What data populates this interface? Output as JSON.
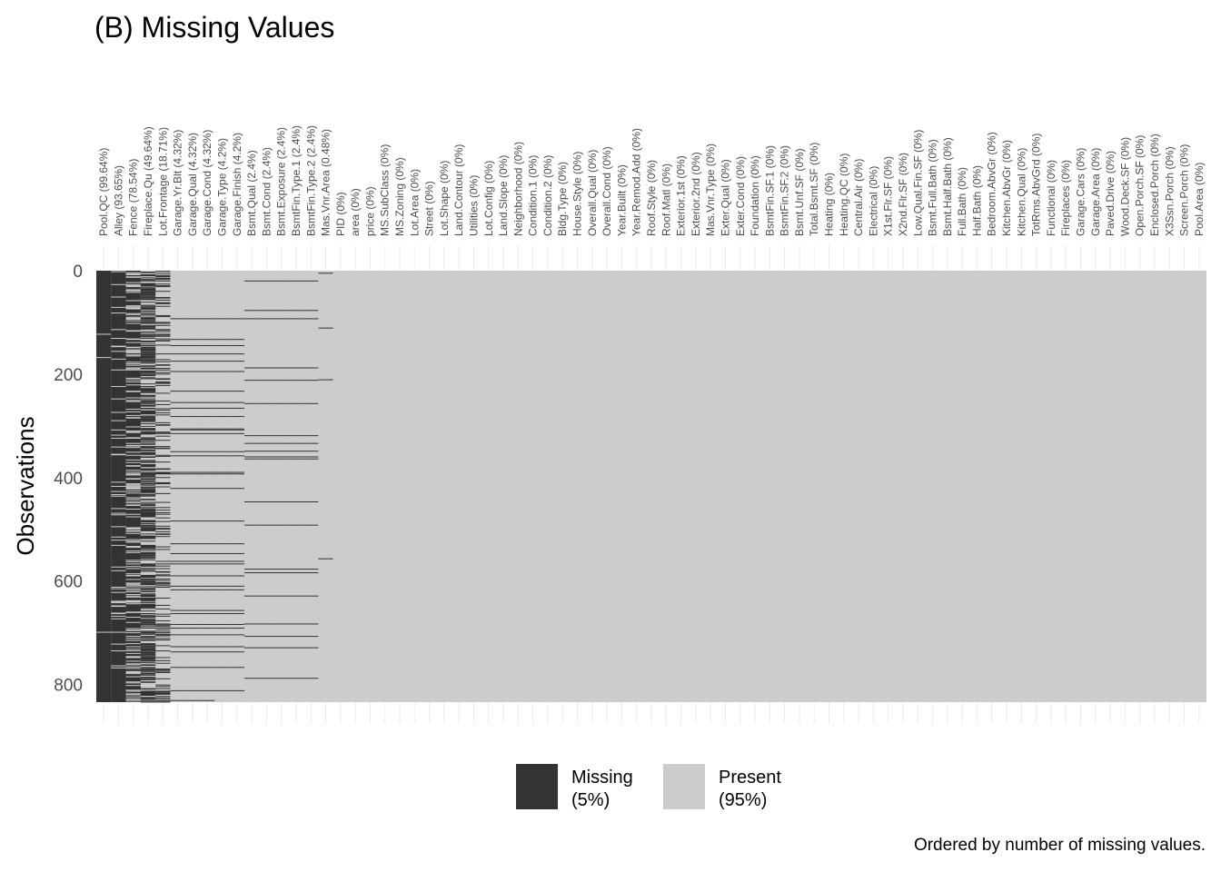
{
  "chart_data": {
    "type": "heatmap",
    "title": "(B) Missing Values",
    "ylabel": "Observations",
    "caption": "Ordered by number of missing values.",
    "n_rows": 834,
    "y_ticks": [
      0,
      200,
      400,
      600,
      800
    ],
    "y_tick_labels": [
      "0",
      "200",
      "400",
      "600",
      "800"
    ],
    "legend": [
      {
        "label": "Missing",
        "pct": "(5%)",
        "color": "#333333"
      },
      {
        "label": "Present",
        "pct": "(95%)",
        "color": "#cccccc"
      }
    ],
    "columns": [
      {
        "name": "Pool.QC",
        "label": "Pool.QC (99.64%)",
        "missing_pct": 99.64
      },
      {
        "name": "Alley",
        "label": "Alley (93.65%)",
        "missing_pct": 93.65
      },
      {
        "name": "Fence",
        "label": "Fence (78.54%)",
        "missing_pct": 78.54
      },
      {
        "name": "Fireplace.Qu",
        "label": "Fireplace.Qu (49.64%)",
        "missing_pct": 49.64
      },
      {
        "name": "Lot.Frontage",
        "label": "Lot.Frontage (18.71%)",
        "missing_pct": 18.71
      },
      {
        "name": "Garage.Yr.Blt",
        "label": "Garage.Yr.Blt (4.32%)",
        "missing_pct": 4.32
      },
      {
        "name": "Garage.Qual",
        "label": "Garage.Qual (4.32%)",
        "missing_pct": 4.32
      },
      {
        "name": "Garage.Cond",
        "label": "Garage.Cond (4.32%)",
        "missing_pct": 4.32
      },
      {
        "name": "Garage.Type",
        "label": "Garage.Type (4.2%)",
        "missing_pct": 4.2
      },
      {
        "name": "Garage.Finish",
        "label": "Garage.Finish (4.2%)",
        "missing_pct": 4.2
      },
      {
        "name": "Bsmt.Qual",
        "label": "Bsmt.Qual (2.4%)",
        "missing_pct": 2.4
      },
      {
        "name": "Bsmt.Cond",
        "label": "Bsmt.Cond (2.4%)",
        "missing_pct": 2.4
      },
      {
        "name": "Bsmt.Exposure",
        "label": "Bsmt.Exposure (2.4%)",
        "missing_pct": 2.4
      },
      {
        "name": "BsmtFin.Type.1",
        "label": "BsmtFin.Type.1 (2.4%)",
        "missing_pct": 2.4
      },
      {
        "name": "BsmtFin.Type.2",
        "label": "BsmtFin.Type.2 (2.4%)",
        "missing_pct": 2.4
      },
      {
        "name": "Mas.Vnr.Area",
        "label": "Mas.Vnr.Area (0.48%)",
        "missing_pct": 0.48
      },
      {
        "name": "PID",
        "label": "PID (0%)",
        "missing_pct": 0
      },
      {
        "name": "area",
        "label": "area (0%)",
        "missing_pct": 0
      },
      {
        "name": "price",
        "label": "price (0%)",
        "missing_pct": 0
      },
      {
        "name": "MS.SubClass",
        "label": "MS.SubClass (0%)",
        "missing_pct": 0
      },
      {
        "name": "MS.Zoning",
        "label": "MS.Zoning (0%)",
        "missing_pct": 0
      },
      {
        "name": "Lot.Area",
        "label": "Lot.Area (0%)",
        "missing_pct": 0
      },
      {
        "name": "Street",
        "label": "Street (0%)",
        "missing_pct": 0
      },
      {
        "name": "Lot.Shape",
        "label": "Lot.Shape (0%)",
        "missing_pct": 0
      },
      {
        "name": "Land.Contour",
        "label": "Land.Contour (0%)",
        "missing_pct": 0
      },
      {
        "name": "Utilities",
        "label": "Utilities (0%)",
        "missing_pct": 0
      },
      {
        "name": "Lot.Config",
        "label": "Lot.Config (0%)",
        "missing_pct": 0
      },
      {
        "name": "Land.Slope",
        "label": "Land.Slope (0%)",
        "missing_pct": 0
      },
      {
        "name": "Neighborhood",
        "label": "Neighborhood (0%)",
        "missing_pct": 0
      },
      {
        "name": "Condition.1",
        "label": "Condition.1 (0%)",
        "missing_pct": 0
      },
      {
        "name": "Condition.2",
        "label": "Condition.2 (0%)",
        "missing_pct": 0
      },
      {
        "name": "Bldg.Type",
        "label": "Bldg.Type (0%)",
        "missing_pct": 0
      },
      {
        "name": "House.Style",
        "label": "House.Style (0%)",
        "missing_pct": 0
      },
      {
        "name": "Overall.Qual",
        "label": "Overall.Qual (0%)",
        "missing_pct": 0
      },
      {
        "name": "Overall.Cond",
        "label": "Overall.Cond (0%)",
        "missing_pct": 0
      },
      {
        "name": "Year.Built",
        "label": "Year.Built (0%)",
        "missing_pct": 0
      },
      {
        "name": "Year.Remod.Add",
        "label": "Year.Remod.Add (0%)",
        "missing_pct": 0
      },
      {
        "name": "Roof.Style",
        "label": "Roof.Style (0%)",
        "missing_pct": 0
      },
      {
        "name": "Roof.Matl",
        "label": "Roof.Matl (0%)",
        "missing_pct": 0
      },
      {
        "name": "Exterior.1st",
        "label": "Exterior.1st (0%)",
        "missing_pct": 0
      },
      {
        "name": "Exterior.2nd",
        "label": "Exterior.2nd (0%)",
        "missing_pct": 0
      },
      {
        "name": "Mas.Vnr.Type",
        "label": "Mas.Vnr.Type (0%)",
        "missing_pct": 0
      },
      {
        "name": "Exter.Qual",
        "label": "Exter.Qual (0%)",
        "missing_pct": 0
      },
      {
        "name": "Exter.Cond",
        "label": "Exter.Cond (0%)",
        "missing_pct": 0
      },
      {
        "name": "Foundation",
        "label": "Foundation (0%)",
        "missing_pct": 0
      },
      {
        "name": "BsmtFin.SF.1",
        "label": "BsmtFin.SF.1 (0%)",
        "missing_pct": 0
      },
      {
        "name": "BsmtFin.SF.2",
        "label": "BsmtFin.SF.2 (0%)",
        "missing_pct": 0
      },
      {
        "name": "Bsmt.Unf.SF",
        "label": "Bsmt.Unf.SF (0%)",
        "missing_pct": 0
      },
      {
        "name": "Total.Bsmt.SF",
        "label": "Total.Bsmt.SF (0%)",
        "missing_pct": 0
      },
      {
        "name": "Heating",
        "label": "Heating (0%)",
        "missing_pct": 0
      },
      {
        "name": "Heating.QC",
        "label": "Heating.QC (0%)",
        "missing_pct": 0
      },
      {
        "name": "Central.Air",
        "label": "Central.Air (0%)",
        "missing_pct": 0
      },
      {
        "name": "Electrical",
        "label": "Electrical (0%)",
        "missing_pct": 0
      },
      {
        "name": "X1st.Flr.SF",
        "label": "X1st.Flr.SF (0%)",
        "missing_pct": 0
      },
      {
        "name": "X2nd.Flr.SF",
        "label": "X2nd.Flr.SF (0%)",
        "missing_pct": 0
      },
      {
        "name": "Low.Qual.Fin.SF",
        "label": "Low.Qual.Fin.SF (0%)",
        "missing_pct": 0
      },
      {
        "name": "Bsmt.Full.Bath",
        "label": "Bsmt.Full.Bath (0%)",
        "missing_pct": 0
      },
      {
        "name": "Bsmt.Half.Bath",
        "label": "Bsmt.Half.Bath (0%)",
        "missing_pct": 0
      },
      {
        "name": "Full.Bath",
        "label": "Full.Bath (0%)",
        "missing_pct": 0
      },
      {
        "name": "Half.Bath",
        "label": "Half.Bath (0%)",
        "missing_pct": 0
      },
      {
        "name": "Bedroom.AbvGr",
        "label": "Bedroom.AbvGr (0%)",
        "missing_pct": 0
      },
      {
        "name": "Kitchen.AbvGr",
        "label": "Kitchen.AbvGr (0%)",
        "missing_pct": 0
      },
      {
        "name": "Kitchen.Qual",
        "label": "Kitchen.Qual (0%)",
        "missing_pct": 0
      },
      {
        "name": "TotRms.AbvGrd",
        "label": "TotRms.AbvGrd (0%)",
        "missing_pct": 0
      },
      {
        "name": "Functional",
        "label": "Functional (0%)",
        "missing_pct": 0
      },
      {
        "name": "Fireplaces",
        "label": "Fireplaces (0%)",
        "missing_pct": 0
      },
      {
        "name": "Garage.Cars",
        "label": "Garage.Cars (0%)",
        "missing_pct": 0
      },
      {
        "name": "Garage.Area",
        "label": "Garage.Area (0%)",
        "missing_pct": 0
      },
      {
        "name": "Paved.Drive",
        "label": "Paved.Drive (0%)",
        "missing_pct": 0
      },
      {
        "name": "Wood.Deck.SF",
        "label": "Wood.Deck.SF (0%)",
        "missing_pct": 0
      },
      {
        "name": "Open.Porch.SF",
        "label": "Open.Porch.SF (0%)",
        "missing_pct": 0
      },
      {
        "name": "Enclosed.Porch",
        "label": "Enclosed.Porch (0%)",
        "missing_pct": 0
      },
      {
        "name": "X3Ssn.Porch",
        "label": "X3Ssn.Porch (0%)",
        "missing_pct": 0
      },
      {
        "name": "Screen.Porch",
        "label": "Screen.Porch (0%)",
        "missing_pct": 0
      },
      {
        "name": "Pool.Area",
        "label": "Pool.Area (0%)",
        "missing_pct": 0
      }
    ]
  }
}
